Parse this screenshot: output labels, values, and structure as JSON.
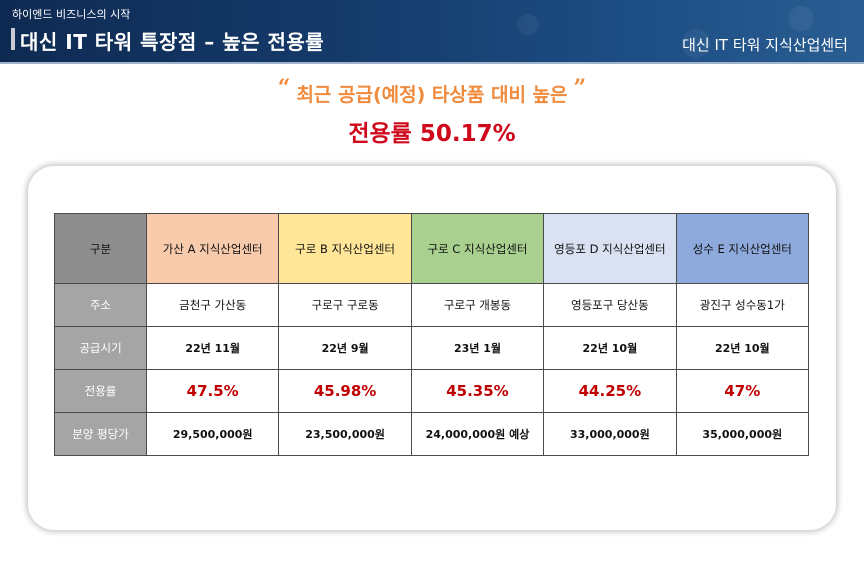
{
  "header": {
    "brand": "하이엔드 비즈니스의 시작",
    "title": "대신 IT 타워 특장점 – 높은 전용률",
    "right_title": "대신 IT 타워 지식산업센터"
  },
  "subtitle": {
    "quote_open": "“",
    "text": "최근 공급(예정) 타상품 대비 높은",
    "quote_close": "”"
  },
  "headline": "전용률 50.17%",
  "table": {
    "corner": "구분",
    "columns": [
      "가산 A 지식산업센터",
      "구로 B 지식산업센터",
      "구로 C  지식산업센터",
      "영등포 D 지식산업센터",
      "성수 E 지식산업센터"
    ],
    "rows": [
      {
        "label": "주소",
        "cells": [
          "금천구 가산동",
          "구로구 구로동",
          "구로구 개봉동",
          "영등포구 당산동",
          "광진구 성수동1가"
        ]
      },
      {
        "label": "공급시기",
        "cells": [
          "22년 11월",
          "22년 9월",
          "23년 1월",
          "22년 10월",
          "22년 10월"
        ]
      },
      {
        "label": "전용률",
        "cells": [
          "47.5%",
          "45.98%",
          "45.35%",
          "44.25%",
          "47%"
        ]
      },
      {
        "label": "분양 평당가",
        "cells": [
          "29,500,000원",
          "23,500,000원",
          "24,000,000원 예상",
          "33,000,000원",
          "35,000,000원"
        ]
      }
    ]
  },
  "colors": {
    "header_bg": "#163d6e",
    "subtitle": "#f08a3c",
    "headline": "#d0081b",
    "rate_text": "#c00000",
    "col_a": "#f8cbad",
    "col_b": "#ffe699",
    "col_c": "#a9d08e",
    "col_d": "#d9e1f2",
    "col_e": "#8ea9db",
    "row_header": "#a5a5a5"
  }
}
